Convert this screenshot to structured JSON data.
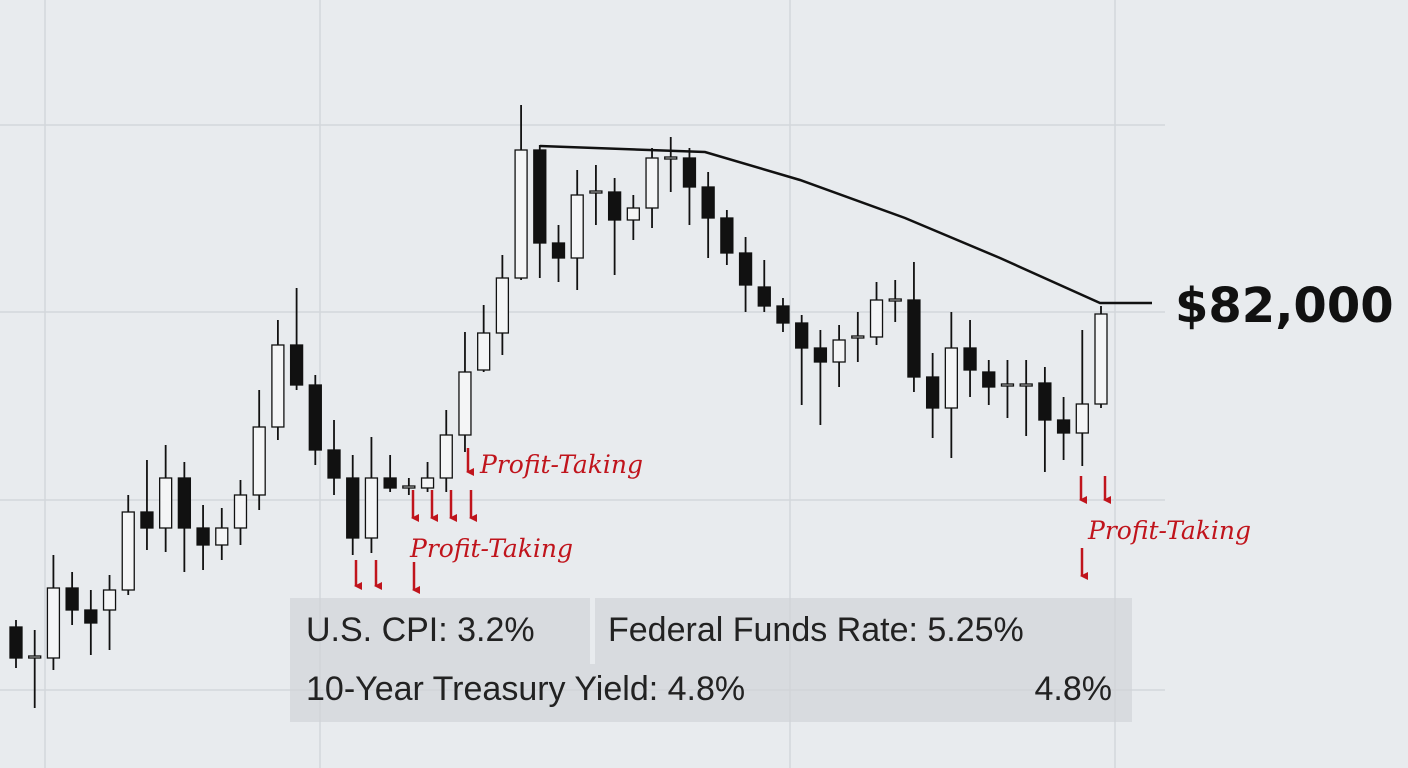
{
  "chart_data": {
    "type": "candlestick",
    "open": [
      65900,
      64400,
      64350,
      67850,
      66750,
      66750,
      67750,
      71650,
      70850,
      73350,
      70850,
      70000,
      70850,
      72500,
      75900,
      80000,
      78000,
      74750,
      73350,
      70350,
      73350,
      72900,
      72850,
      73350,
      75500,
      78750,
      80600,
      83350,
      89750,
      85100,
      84350,
      87650,
      87650,
      86250,
      86850,
      89350,
      89350,
      87900,
      86350,
      84600,
      82900,
      81950,
      81100,
      79850,
      79150,
      80400,
      80400,
      82250,
      82250,
      78400,
      76850,
      79850,
      78650,
      78000,
      78000,
      78100,
      76250,
      75600,
      77050
    ],
    "high": [
      66250,
      65750,
      69500,
      68650,
      67750,
      68500,
      72500,
      74250,
      75000,
      74150,
      72000,
      71850,
      73250,
      77750,
      81250,
      82850,
      78500,
      76250,
      74500,
      75400,
      74500,
      73350,
      74150,
      76750,
      80650,
      82000,
      84500,
      92000,
      90000,
      86000,
      88750,
      89000,
      88350,
      87500,
      89850,
      90400,
      89850,
      88650,
      86750,
      85400,
      84250,
      82350,
      81500,
      80750,
      81000,
      81650,
      83150,
      83250,
      84150,
      79600,
      81650,
      81250,
      79250,
      79250,
      79250,
      78900,
      77400,
      80750,
      81950
    ],
    "low": [
      63850,
      61850,
      63750,
      66000,
      64500,
      64750,
      67500,
      69750,
      69650,
      68650,
      68750,
      69250,
      70000,
      71750,
      75250,
      77750,
      74000,
      72500,
      69500,
      69600,
      72650,
      72500,
      72650,
      72650,
      74650,
      78650,
      79500,
      83250,
      83350,
      83150,
      82750,
      86000,
      83500,
      85250,
      85850,
      87650,
      86000,
      84350,
      84000,
      81650,
      81650,
      80650,
      77000,
      76000,
      77900,
      79150,
      80000,
      81150,
      77650,
      75350,
      74350,
      77400,
      77000,
      76350,
      75450,
      73650,
      74250,
      73950,
      76850
    ],
    "close": [
      64350,
      64400,
      67850,
      66750,
      66100,
      67750,
      71650,
      70850,
      73350,
      70850,
      70000,
      70850,
      72500,
      75900,
      80000,
      78000,
      74750,
      73350,
      70350,
      73350,
      72850,
      72900,
      73350,
      75500,
      78650,
      80600,
      83350,
      89750,
      85100,
      84350,
      87500,
      87650,
      86250,
      86850,
      89350,
      89350,
      87900,
      86350,
      84600,
      83000,
      81950,
      81100,
      79850,
      79150,
      80250,
      80400,
      82250,
      82250,
      78400,
      76850,
      79850,
      78750,
      77900,
      78000,
      78000,
      76250,
      75600,
      77050,
      81550
    ],
    "ylim": [
      58850,
      97250
    ],
    "up_color": "#f4f5f6",
    "down_color": "#111111",
    "price_label": "$82,000",
    "annotations": [
      "Profit-Taking",
      "Profit-Taking",
      "Profit-Taking"
    ]
  },
  "info_panel": {
    "rows": [
      [
        "U.S. CPI: 3.2%",
        "Federal Funds Rate: 5.25%"
      ],
      [
        "10-Year Treasury Yield: 4.8%",
        "4.8%"
      ]
    ]
  }
}
